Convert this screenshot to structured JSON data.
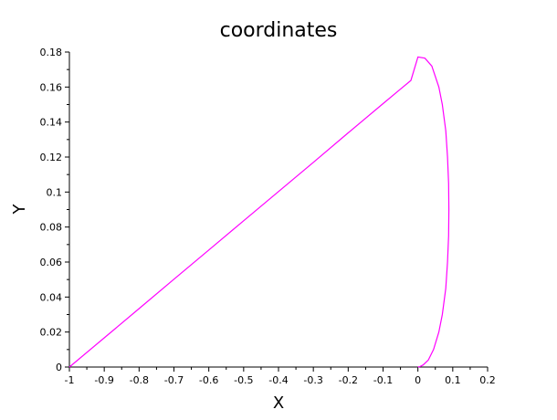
{
  "chart_data": {
    "type": "line",
    "title": "coordinates",
    "xlabel": "X",
    "ylabel": "Y",
    "xlim": [
      -1,
      0.2
    ],
    "ylim": [
      0,
      0.18
    ],
    "x_ticks": [
      "-1",
      "-0.9",
      "-0.8",
      "-0.7",
      "-0.6",
      "-0.5",
      "-0.4",
      "-0.3",
      "-0.2",
      "-0.1",
      "0",
      "0.1",
      "0.2"
    ],
    "y_ticks": [
      "0",
      "0.02",
      "0.04",
      "0.06",
      "0.08",
      "0.1",
      "0.12",
      "0.14",
      "0.16",
      "0.18"
    ],
    "grid": false,
    "colors": {
      "series": "#ff00ff",
      "axes": "#000000"
    },
    "series": [
      {
        "x": [
          -1.0,
          -0.9,
          -0.8,
          -0.7,
          -0.6,
          -0.5,
          -0.4,
          -0.3,
          -0.2,
          -0.1,
          -0.05,
          -0.02,
          0.0,
          0.02,
          0.04,
          0.06,
          0.07,
          0.08,
          0.085,
          0.088,
          0.089,
          0.088,
          0.085,
          0.08,
          0.07,
          0.06,
          0.045,
          0.03,
          0.015,
          0.005,
          0.0
        ],
        "y": [
          0.0,
          0.0167,
          0.0334,
          0.0502,
          0.0669,
          0.0836,
          0.1003,
          0.117,
          0.1338,
          0.1505,
          0.1588,
          0.1638,
          0.1772,
          0.1765,
          0.172,
          0.16,
          0.15,
          0.135,
          0.12,
          0.105,
          0.09,
          0.075,
          0.06,
          0.045,
          0.03,
          0.02,
          0.01,
          0.004,
          0.0012,
          0.0002,
          0.0
        ]
      }
    ]
  }
}
